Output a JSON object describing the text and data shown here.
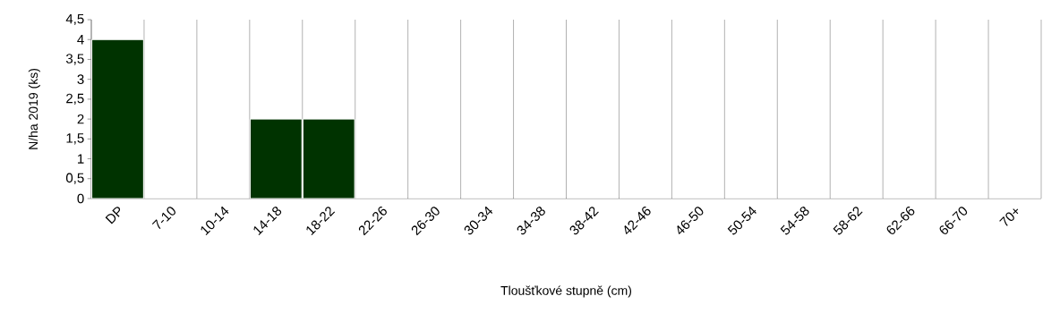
{
  "chart_data": {
    "type": "bar",
    "xlabel": "Tloušťkové stupně (cm)",
    "ylabel": "N/ha 2019 (ks)",
    "categories": [
      "DP",
      "7-10",
      "10-14",
      "14-18",
      "18-22",
      "22-26",
      "26-30",
      "30-34",
      "34-38",
      "38-42",
      "42-46",
      "46-50",
      "50-54",
      "54-58",
      "58-62",
      "62-66",
      "66-70",
      "70+"
    ],
    "values": [
      4,
      0,
      0,
      2,
      2,
      0,
      0,
      0,
      0,
      0,
      0,
      0,
      0,
      0,
      0,
      0,
      0,
      0
    ],
    "color": "#003300",
    "ylim": [
      0,
      4.5
    ],
    "yticks": [
      0,
      {
        "value": 0.5,
        "label": "0,5"
      },
      1,
      {
        "value": 1.5,
        "label": "1,5"
      },
      2,
      {
        "value": 2.5,
        "label": "2,5"
      },
      3,
      {
        "value": 3.5,
        "label": "3,5"
      },
      4,
      {
        "value": 4.5,
        "label": "4,5"
      }
    ],
    "grid": "x"
  }
}
